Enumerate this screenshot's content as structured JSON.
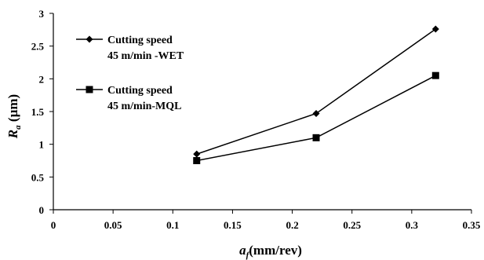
{
  "chart_data": {
    "type": "line",
    "xlabel": {
      "main": "a",
      "sub": "f",
      "rest": "(mm/rev)"
    },
    "ylabel": {
      "main": "R",
      "sub": "a",
      "rest": " (µm)"
    },
    "xlim": [
      0,
      0.35
    ],
    "ylim": [
      0,
      3
    ],
    "x_ticks": [
      "0",
      "0.05",
      "0.1",
      "0.15",
      "0.2",
      "0.25",
      "0.3",
      "0.35"
    ],
    "y_ticks": [
      "0",
      "0.5",
      "1",
      "1.5",
      "2",
      "2.5",
      "3"
    ],
    "grid": false,
    "legend_position": "top-left",
    "series": [
      {
        "name_lines": [
          "Cutting speed",
          "45 m/min -WET"
        ],
        "marker": "diamond",
        "color": "#000000",
        "x": [
          0.12,
          0.22,
          0.32
        ],
        "y": [
          0.85,
          1.47,
          2.76
        ]
      },
      {
        "name_lines": [
          "Cutting speed",
          "45 m/min-MQL"
        ],
        "marker": "square",
        "color": "#000000",
        "x": [
          0.12,
          0.22,
          0.32
        ],
        "y": [
          0.75,
          1.1,
          2.05
        ]
      }
    ]
  }
}
